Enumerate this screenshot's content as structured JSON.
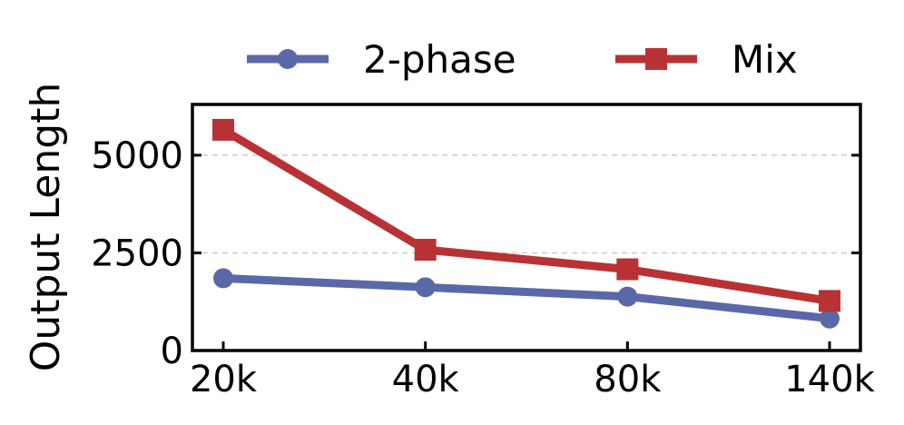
{
  "chart_data": {
    "type": "line",
    "title": "",
    "xlabel": "",
    "ylabel": "Output Length",
    "categories": [
      "20k",
      "40k",
      "80k",
      "140k"
    ],
    "ylim": [
      0,
      6300
    ],
    "yticks": [
      0,
      2500,
      5000
    ],
    "grid": "horizontal dashed at 2500 and 5000",
    "legend_placement": "top-center",
    "series": [
      {
        "name": "2-phase",
        "values": [
          1850,
          1620,
          1380,
          820
        ],
        "color": "#5b68a8",
        "marker": "circle"
      },
      {
        "name": "Mix",
        "values": [
          5650,
          2580,
          2080,
          1270
        ],
        "color": "#b83235",
        "marker": "square"
      }
    ]
  }
}
